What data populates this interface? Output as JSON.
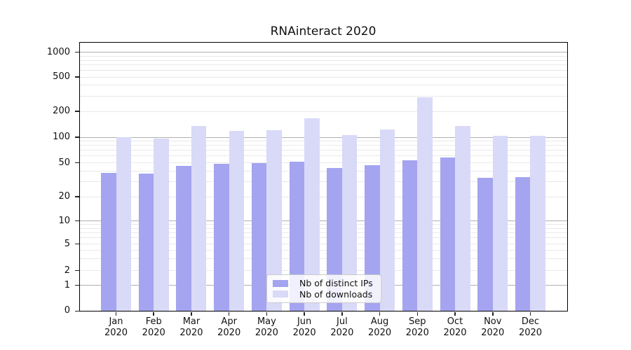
{
  "title": "RNAinteract 2020",
  "colors": {
    "bar_distinct_ips": "#a4a4f0",
    "bar_downloads": "#d9d9f8",
    "major_grid": "#b0b0b0",
    "minor_grid": "#e9e9ec",
    "axis": "#000000",
    "legend_border": "#cccccc",
    "text": "#111111"
  },
  "chart_data": {
    "type": "bar",
    "title": "RNAinteract 2020",
    "xlabel": "",
    "ylabel": "",
    "categories": [
      "Jan",
      "Feb",
      "Mar",
      "Apr",
      "May",
      "Jun",
      "Jul",
      "Aug",
      "Sep",
      "Oct",
      "Nov",
      "Dec"
    ],
    "year": "2020",
    "series": [
      {
        "name": "Nb of distinct IPs",
        "color": "#a4a4f0",
        "values": [
          38,
          37,
          46,
          49,
          50,
          51,
          43,
          47,
          53,
          58,
          33,
          34
        ]
      },
      {
        "name": "Nb of downloads",
        "color": "#d9d9f8",
        "values": [
          100,
          96,
          134,
          118,
          120,
          165,
          105,
          123,
          290,
          134,
          104,
          103
        ]
      }
    ],
    "yticks": [
      0,
      1,
      2,
      5,
      10,
      20,
      50,
      100,
      200,
      500,
      1000
    ],
    "ylim": [
      0,
      1300
    ],
    "scale": "symlog",
    "grid": true,
    "legend_position": "lower center"
  }
}
